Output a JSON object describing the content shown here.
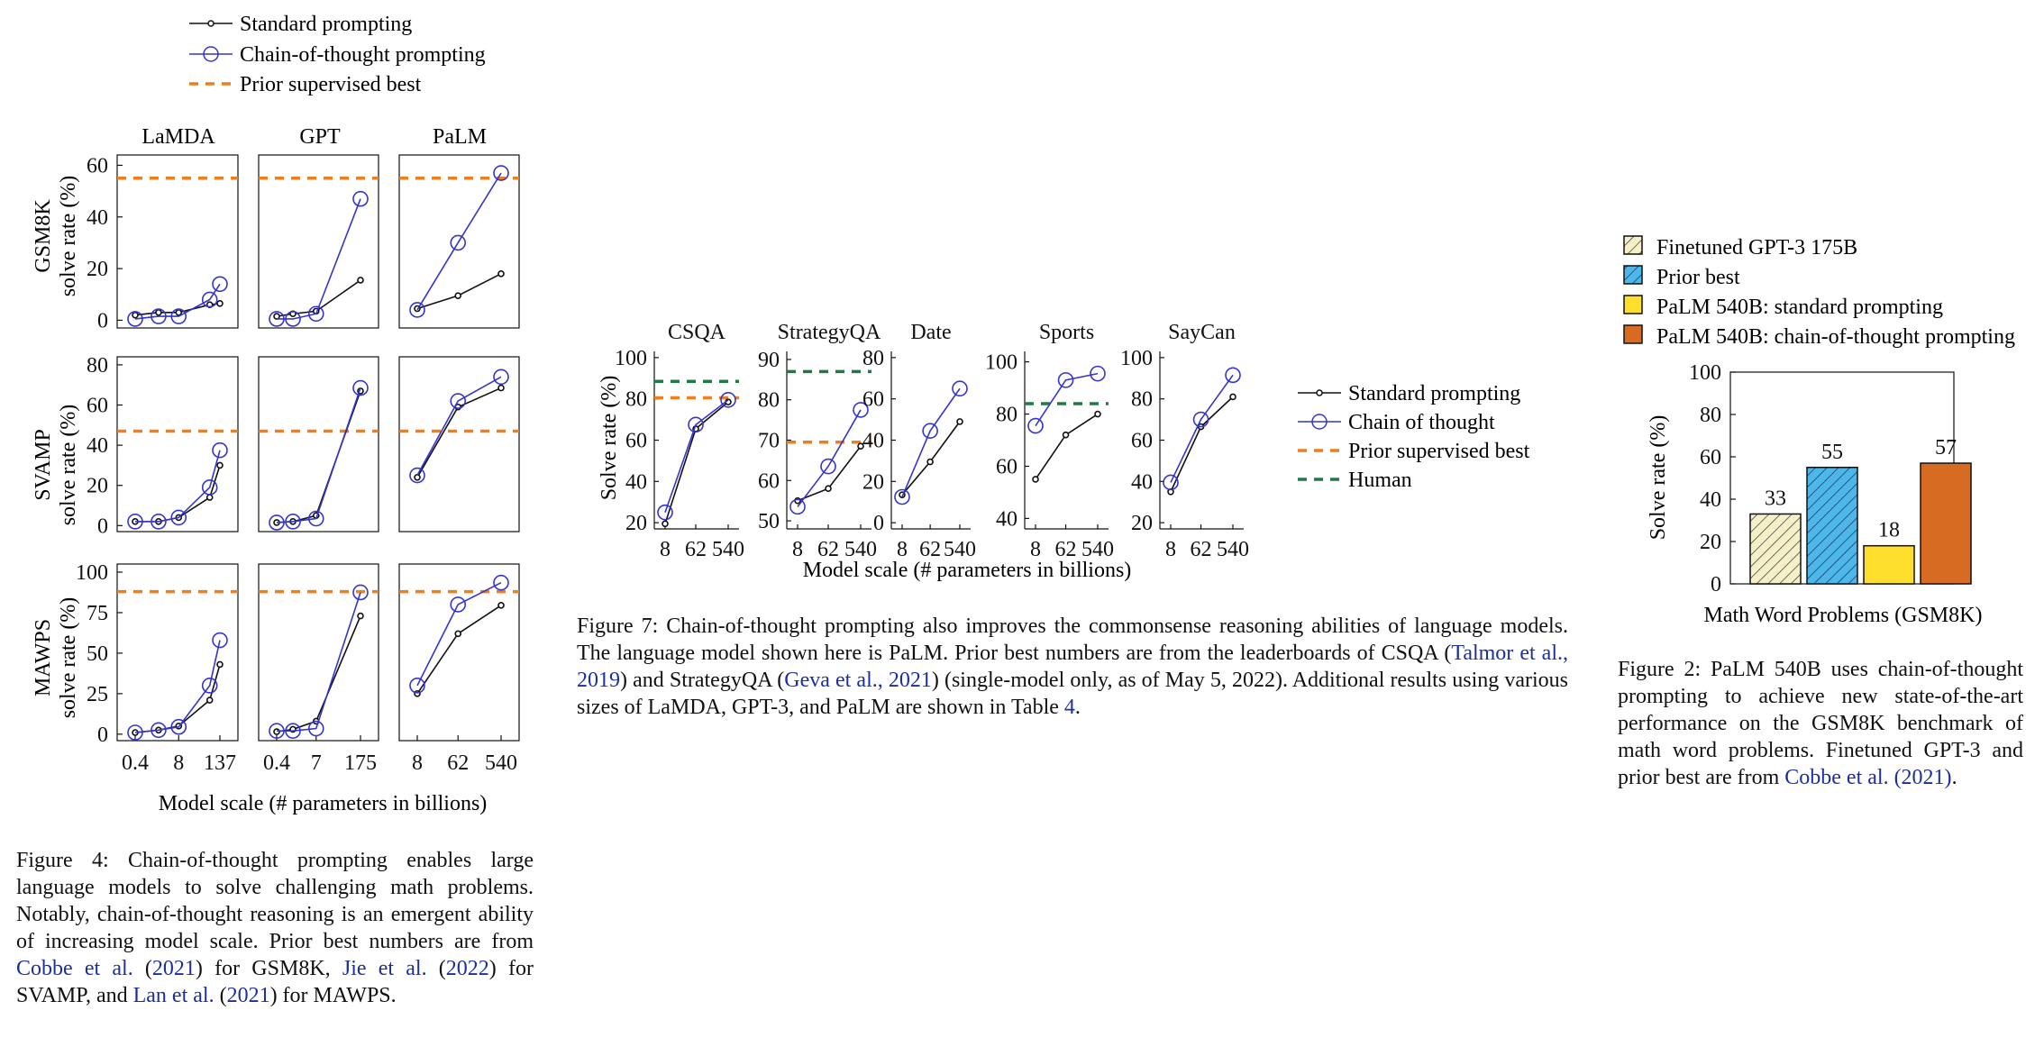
{
  "colors": {
    "standard": "#111111",
    "cot": "#3535cc",
    "prior_best_line": "#f07f1a",
    "human_line": "#1f7a45",
    "bar_finetuned": "#f5f0c8",
    "bar_prior_best": "#4db8e8",
    "bar_standard": "#ffdf2e",
    "bar_cot": "#d86b22",
    "link": "#1a2fa0"
  },
  "fig4": {
    "legend": [
      "Standard prompting",
      "Chain-of-thought prompting",
      "Prior supervised best"
    ],
    "col_titles": [
      "LaMDA",
      "GPT",
      "PaLM"
    ],
    "row_labels": [
      [
        "GSM8K",
        "solve rate (%)"
      ],
      [
        "SVAMP",
        "solve rate (%)"
      ],
      [
        "MAWPS",
        "solve rate (%)"
      ]
    ],
    "xlabel": "Model scale (# parameters in billions)",
    "caption": {
      "t1": "Figure 4: Chain-of-thought prompting enables large language models to solve challenging math problems. Notably, chain-of-thought reasoning is an emergent ability of increasing model scale. Prior best numbers are from ",
      "c1": "Cobbe et al.",
      "t2": " (",
      "c1y": "2021",
      "t3": ") for GSM8K, ",
      "c2": "Jie et al.",
      "t4": " (",
      "c2y": "2022",
      "t5": ") for SVAMP, and ",
      "c3": "Lan et al.",
      "t6": " (",
      "c3y": "2021",
      "t7": ") for MAWPS."
    }
  },
  "fig7": {
    "legend": [
      "Standard prompting",
      "Chain of thought",
      "Prior supervised best",
      "Human"
    ],
    "xlabel": "Model scale (# parameters in billions)",
    "ylabel": "Solve rate (%)",
    "caption": {
      "t1": "Figure 7: Chain-of-thought prompting also improves the commonsense reasoning abilities of language models. The language model shown here is PaLM. Prior best numbers are from the leaderboards of CSQA (",
      "c1": "Talmor et al., 2019",
      "t2": ") and StrategyQA (",
      "c2": "Geva et al., 2021",
      "t3": ") (single-model only, as of May 5, 2022). Additional results using various sizes of LaMDA, GPT-3, and PaLM are shown in Table ",
      "c3": "4",
      "t4": "."
    }
  },
  "fig2": {
    "legend": [
      "Finetuned GPT-3 175B",
      "Prior best",
      "PaLM 540B: standard prompting",
      "PaLM 540B: chain-of-thought prompting"
    ],
    "caption": {
      "t1": "Figure 2: PaLM 540B uses chain-of-thought prompting to achieve new state-of-the-art performance on the GSM8K benchmark of math word problems. Finetuned GPT-3 and prior best are from ",
      "c1": "Cobbe et al. (2021)",
      "t2": "."
    }
  },
  "chart_data": [
    {
      "id": "fig4-grid",
      "type": "line",
      "x_scale": "log",
      "columns": [
        {
          "title": "LaMDA",
          "x": [
            0.4,
            2,
            8,
            68,
            137
          ],
          "xticks": [
            "0.4",
            "8",
            "137"
          ]
        },
        {
          "title": "GPT",
          "x": [
            0.4,
            1.3,
            7,
            175
          ],
          "xticks": [
            "0.4",
            "7",
            "175"
          ]
        },
        {
          "title": "PaLM",
          "x": [
            8,
            62,
            540
          ],
          "xticks": [
            "8",
            "62",
            "540"
          ]
        }
      ],
      "rows": [
        {
          "dataset": "GSM8K",
          "ylim": [
            -3,
            64
          ],
          "yticks": [
            0,
            20,
            40,
            60
          ],
          "prior_best": 55,
          "standard": [
            [
              2,
              3,
              3,
              6,
              6.5
            ],
            [
              1.5,
              2.5,
              3.5,
              15.5
            ],
            [
              4.5,
              9.5,
              18
            ]
          ],
          "cot": [
            [
              0.5,
              1.5,
              1.5,
              8,
              14
            ],
            [
              0.5,
              0.5,
              2.5,
              47
            ],
            [
              4,
              30,
              57
            ]
          ]
        },
        {
          "dataset": "SVAMP",
          "ylim": [
            -3,
            84
          ],
          "yticks": [
            0,
            20,
            40,
            60,
            80
          ],
          "prior_best": 47,
          "standard": [
            [
              2,
              2,
              4,
              14,
              30
            ],
            [
              1.5,
              2,
              5,
              67
            ],
            [
              24,
              59,
              68.5
            ]
          ],
          "cot": [
            [
              2,
              2,
              4,
              19,
              37.5
            ],
            [
              1.5,
              2,
              3.5,
              68.5
            ],
            [
              25,
              62,
              74
            ]
          ]
        },
        {
          "dataset": "MAWPS",
          "ylim": [
            -4,
            105
          ],
          "yticks": [
            0,
            25,
            50,
            75,
            100
          ],
          "prior_best": 88,
          "standard": [
            [
              1,
              2.5,
              5,
              21,
              43
            ],
            [
              1.5,
              3,
              8,
              73
            ],
            [
              25,
              62,
              79.5
            ]
          ],
          "cot": [
            [
              1,
              2.5,
              4.5,
              30,
              58
            ],
            [
              2,
              2,
              3.5,
              87.5
            ],
            [
              30,
              80,
              93.5
            ]
          ]
        }
      ],
      "legend": [
        "Standard prompting",
        "Chain-of-thought prompting",
        "Prior supervised best"
      ],
      "xlabel": "Model scale (# parameters in billions)"
    },
    {
      "id": "fig7-commonsense",
      "type": "line",
      "x": [
        8,
        62,
        540
      ],
      "xticks": [
        "8",
        "62",
        "540"
      ],
      "ylabel": "Solve rate (%)",
      "xlabel": "Model scale (# parameters in billions)",
      "panels": [
        {
          "title": "CSQA",
          "ylim": [
            17,
            103
          ],
          "yticks": [
            20,
            40,
            60,
            80,
            100
          ],
          "standard": [
            19.5,
            65.5,
            78.5
          ],
          "cot": [
            25,
            67.5,
            79.5
          ],
          "prior_best": 80.5,
          "human": 88.5
        },
        {
          "title": "StrategyQA",
          "ylim": [
            48,
            92
          ],
          "yticks": [
            50,
            60,
            70,
            80,
            90
          ],
          "standard": [
            55,
            58,
            68.5
          ],
          "cot": [
            53.5,
            63.5,
            77.5
          ],
          "prior_best": 69.5,
          "human": 87
        },
        {
          "title": "Date",
          "ylim": [
            -3,
            83
          ],
          "yticks": [
            0,
            20,
            40,
            60,
            80
          ],
          "standard": [
            13.5,
            29.5,
            49
          ],
          "cot": [
            12.5,
            44.5,
            65
          ]
        },
        {
          "title": "Sports",
          "ylim": [
            36,
            104
          ],
          "yticks": [
            40,
            60,
            80,
            100
          ],
          "standard": [
            55,
            72,
            80
          ],
          "cot": [
            75.5,
            93,
            95.5
          ],
          "prior_best": 84,
          "human": 84
        },
        {
          "title": "SayCan",
          "ylim": [
            17,
            103
          ],
          "yticks": [
            20,
            40,
            60,
            80,
            100
          ],
          "standard": [
            35,
            66.5,
            81
          ],
          "cot": [
            39.5,
            70,
            91.5
          ]
        }
      ],
      "legend": [
        "Standard prompting",
        "Chain of thought",
        "Prior supervised best",
        "Human"
      ]
    },
    {
      "id": "fig2-gsm8k-bars",
      "type": "bar",
      "categories": [
        "Finetuned GPT-3 175B",
        "Prior best",
        "PaLM 540B: standard prompting",
        "PaLM 540B: chain-of-thought prompting"
      ],
      "values": [
        33,
        55,
        18,
        57
      ],
      "ylabel": "Solve rate (%)",
      "xlabel": "Math Word Problems (GSM8K)",
      "ylim": [
        0,
        100
      ],
      "yticks": [
        0,
        20,
        40,
        60,
        80,
        100
      ]
    }
  ]
}
